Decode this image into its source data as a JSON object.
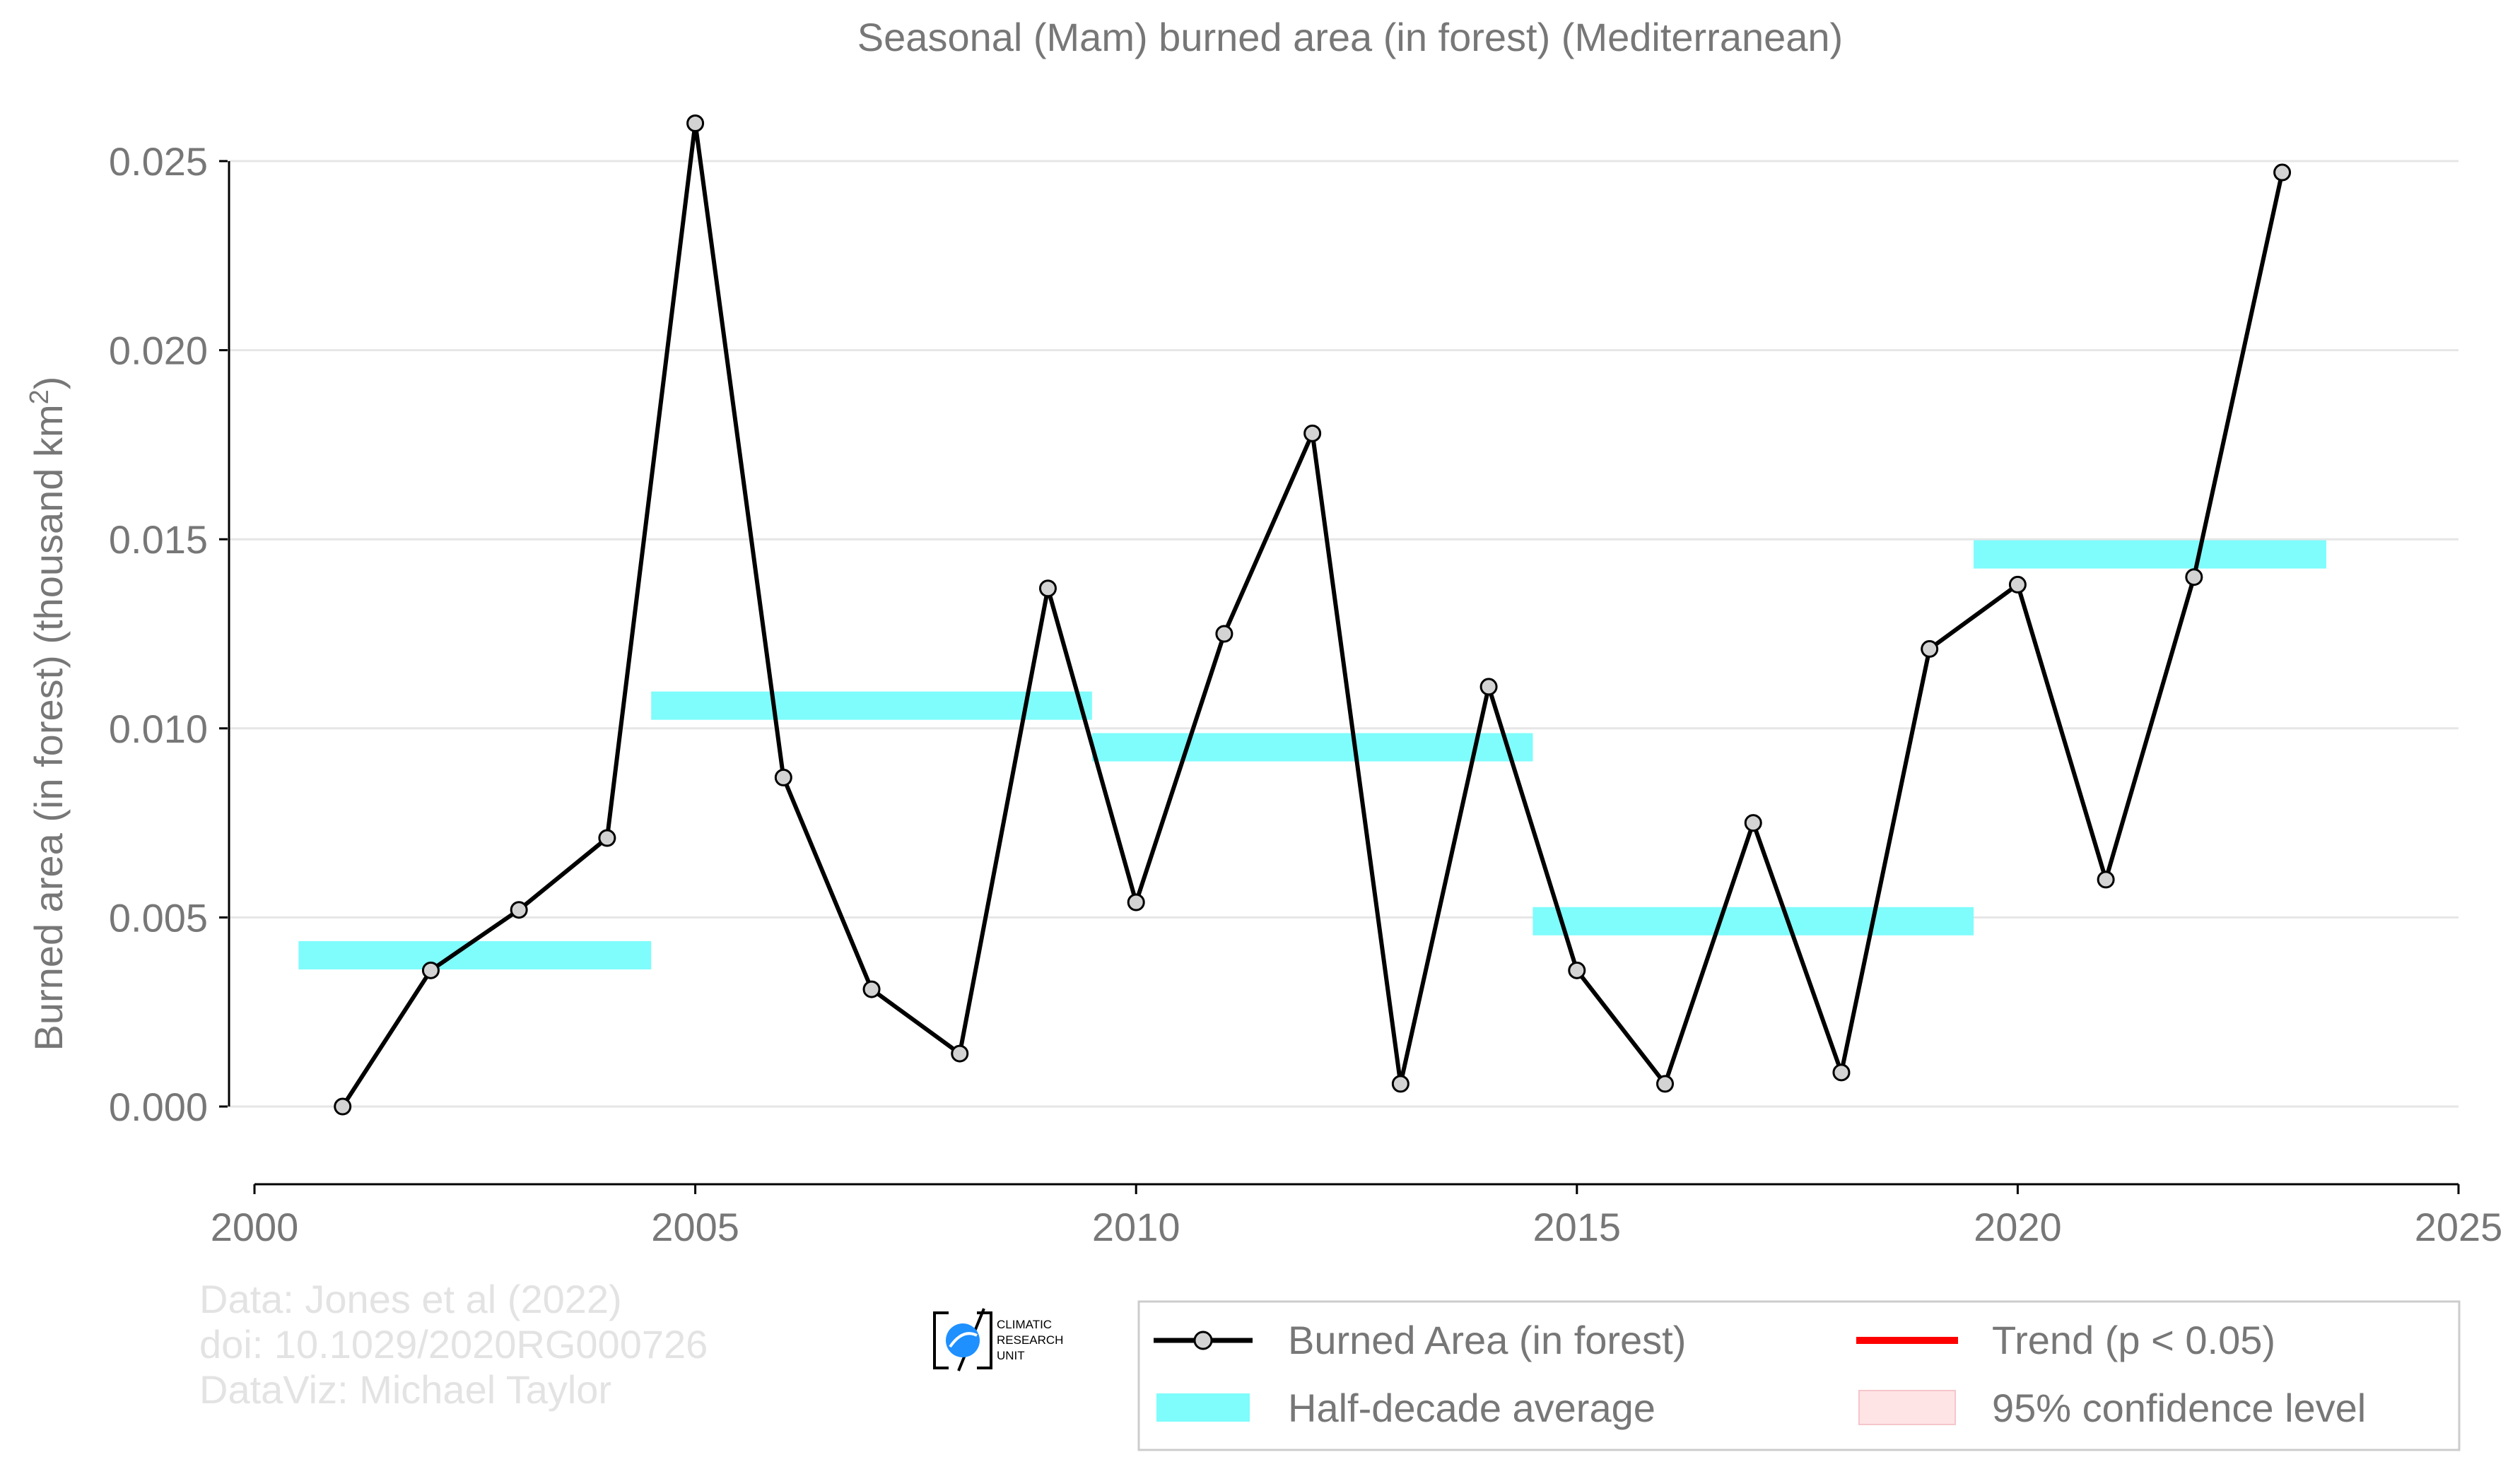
{
  "chart_data": {
    "type": "line",
    "title": "Seasonal (Mam) burned area (in forest) (Mediterranean)",
    "ylabel": "Burned area (in forest) (thousand km",
    "ylabel_sup": "2",
    "ylabel_close": ")",
    "xlabel": "",
    "xlim": [
      2000,
      2025
    ],
    "ylim": [
      0.0,
      0.025
    ],
    "xticks": [
      2000,
      2005,
      2010,
      2015,
      2020,
      2025
    ],
    "yticks": [
      "0.000",
      "0.005",
      "0.010",
      "0.015",
      "0.020",
      "0.025"
    ],
    "ytick_values": [
      0.0,
      0.005,
      0.01,
      0.015,
      0.02,
      0.025
    ],
    "grid": true,
    "legend_position": "bottom-right",
    "series": [
      {
        "name": "Burned Area (in forest)",
        "color": "#000000",
        "marker_fill": "#d3d3d3",
        "x": [
          2001,
          2002,
          2003,
          2004,
          2005,
          2006,
          2007,
          2008,
          2009,
          2010,
          2011,
          2012,
          2013,
          2014,
          2015,
          2016,
          2017,
          2018,
          2019,
          2020,
          2021,
          2022,
          2023
        ],
        "y": [
          0.0,
          0.0036,
          0.0052,
          0.0071,
          0.026,
          0.0087,
          0.0031,
          0.0014,
          0.0137,
          0.0054,
          0.0125,
          0.0178,
          0.0006,
          0.0111,
          0.0036,
          0.0006,
          0.0075,
          0.0009,
          0.0121,
          0.0138,
          0.006,
          0.014,
          0.0247
        ]
      }
    ],
    "half_decade_average": {
      "name": "Half-decade average",
      "color": "#7ffcfc",
      "segments": [
        {
          "x0": 2000.5,
          "x1": 2004.5,
          "y": 0.004
        },
        {
          "x0": 2004.5,
          "x1": 2009.5,
          "y": 0.0106
        },
        {
          "x0": 2009.5,
          "x1": 2014.5,
          "y": 0.0095
        },
        {
          "x0": 2014.5,
          "x1": 2019.5,
          "y": 0.0049
        },
        {
          "x0": 2019.5,
          "x1": 2023.5,
          "y": 0.0146
        }
      ]
    },
    "legend": [
      {
        "label": "Burned Area (in forest)",
        "kind": "line-marker",
        "color": "#000000"
      },
      {
        "label": "Trend (p < 0.05)",
        "kind": "line",
        "color": "#ff0000"
      },
      {
        "label": "Half-decade average",
        "kind": "band",
        "color": "#7ffcfc"
      },
      {
        "label": "95% confidence level",
        "kind": "band",
        "color": "#ffe4e6"
      }
    ]
  },
  "credits": {
    "line1": "Data: Jones et al (2022)",
    "line2": "doi: 10.1029/2020RG000726",
    "line3": "DataViz: Michael Taylor"
  },
  "logo": {
    "line1": "CLIMATIC",
    "line2": "RESEARCH",
    "line3": "UNIT",
    "color": "#1e90ff"
  }
}
